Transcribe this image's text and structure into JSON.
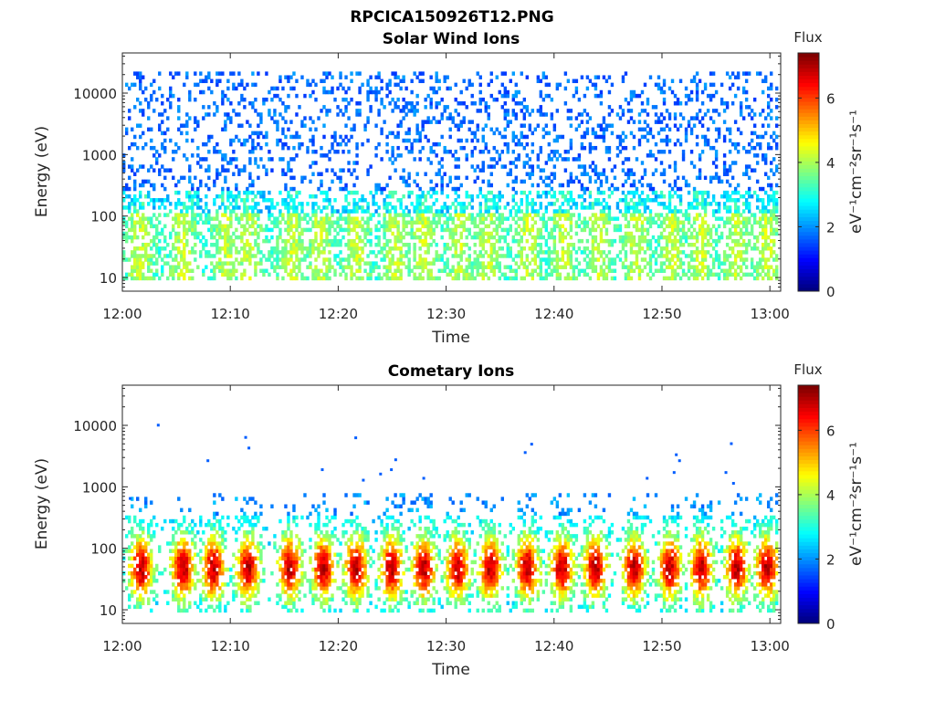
{
  "figure_title": "RPCICA150926T12.PNG",
  "chart_data": [
    {
      "type": "heatmap",
      "title": "Solar Wind Ions",
      "xlabel": "Time",
      "ylabel": "Energy (eV)",
      "xticks": [
        "12:00",
        "12:10",
        "12:20",
        "12:30",
        "12:40",
        "12:50",
        "13:00"
      ],
      "xlim_minutes": [
        0,
        61
      ],
      "yscale": "log",
      "yticks": [
        10,
        100,
        1000,
        10000
      ],
      "ytick_labels": [
        "10",
        "100",
        "1000",
        "10000"
      ],
      "ylim": [
        6,
        45000
      ],
      "colorbar": {
        "label": "eV⁻¹cm⁻²sr⁻¹s⁻¹",
        "header": "Flux",
        "range": [
          0,
          7.4
        ],
        "ticks": [
          "0",
          "2",
          "4",
          "6"
        ],
        "colormap": "jet"
      },
      "data_description": "Sparse scattered counts across 10 eV to 30 keV, mostly low flux (~2); moderate flux (2.5-4) concentrated below ~100 eV with periodic enhancements.",
      "burst_times_minutes": [
        1.5,
        5.5,
        9.5,
        11.5,
        15.5,
        18.2,
        21.5,
        25.2,
        27.8,
        31.2,
        33.8,
        37.5,
        40.8,
        44,
        47.5,
        50.8,
        53.5,
        56.7,
        59.6
      ],
      "low_energy_flux_peak": 4.6,
      "high_energy_flux_typical": 1.7
    },
    {
      "type": "heatmap",
      "title": "Cometary Ions",
      "xlabel": "Time",
      "ylabel": "Energy (eV)",
      "xticks": [
        "12:00",
        "12:10",
        "12:20",
        "12:30",
        "12:40",
        "12:50",
        "13:00"
      ],
      "xlim_minutes": [
        0,
        61
      ],
      "yscale": "log",
      "yticks": [
        10,
        100,
        1000,
        10000
      ],
      "ytick_labels": [
        "10",
        "100",
        "1000",
        "10000"
      ],
      "ylim": [
        6,
        45000
      ],
      "colorbar": {
        "label": "eV⁻¹cm⁻²sr⁻¹s⁻¹",
        "header": "Flux",
        "range": [
          0,
          7.4
        ],
        "ticks": [
          "0",
          "2",
          "4",
          "6"
        ],
        "colormap": "jet"
      },
      "data_description": "Periodic bursts of cometary ions between ~10 and ~500 eV peaking near 40-60 eV, with isolated counts up to ~10 keV.",
      "burst_times_minutes": [
        1.6,
        5.5,
        8.3,
        11.5,
        15.4,
        18.5,
        21.5,
        24.8,
        27.8,
        30.9,
        34.0,
        37.4,
        40.6,
        43.7,
        47.3,
        50.6,
        53.5,
        56.8,
        59.6
      ],
      "burst_peak_energy_eV": 45,
      "burst_peak_flux": 6.7,
      "sparse_high_energy_counts": [
        {
          "t": 0.6,
          "e": 680
        },
        {
          "t": 3.2,
          "e": 10600
        },
        {
          "t": 7.8,
          "e": 2800
        },
        {
          "t": 11.3,
          "e": 6700
        },
        {
          "t": 11.6,
          "e": 4500
        },
        {
          "t": 18.4,
          "e": 2000
        },
        {
          "t": 21.5,
          "e": 6600
        },
        {
          "t": 22.2,
          "e": 1350
        },
        {
          "t": 23.8,
          "e": 1700
        },
        {
          "t": 24.8,
          "e": 2000
        },
        {
          "t": 25.2,
          "e": 2900
        },
        {
          "t": 27.8,
          "e": 1450
        },
        {
          "t": 37.2,
          "e": 3800
        },
        {
          "t": 37.8,
          "e": 5200
        },
        {
          "t": 48.5,
          "e": 1450
        },
        {
          "t": 51.2,
          "e": 3500
        },
        {
          "t": 51.5,
          "e": 2800
        },
        {
          "t": 51.0,
          "e": 1800
        },
        {
          "t": 55.8,
          "e": 1800
        },
        {
          "t": 56.3,
          "e": 5300
        },
        {
          "t": 56.5,
          "e": 1200
        }
      ]
    }
  ]
}
